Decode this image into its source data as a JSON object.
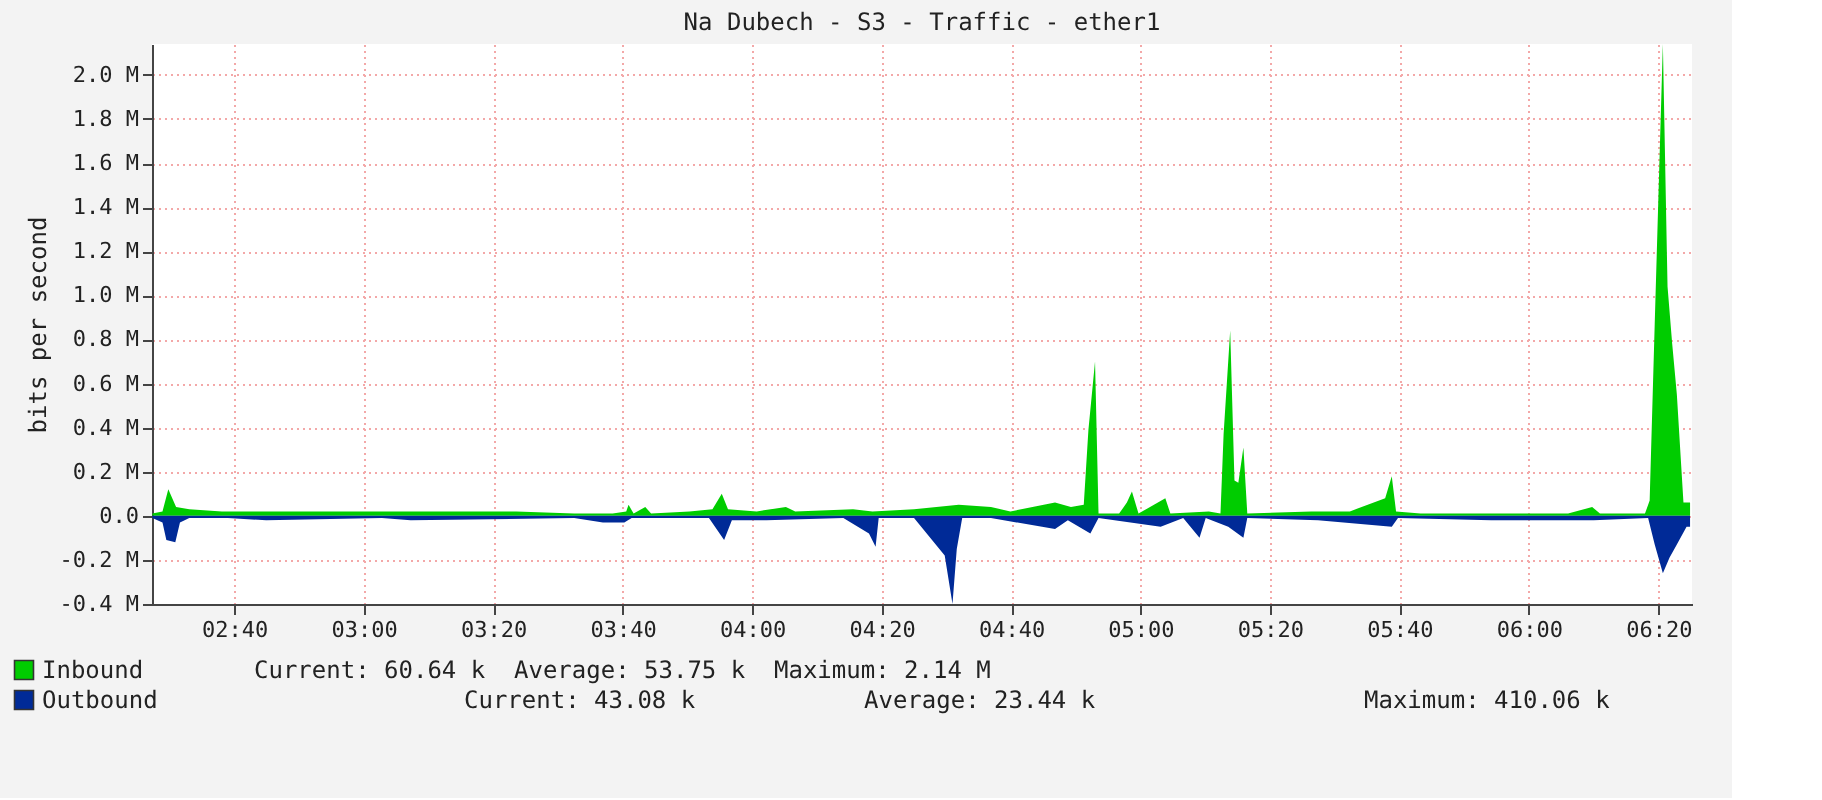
{
  "chart_data": {
    "type": "area",
    "title": "Na Dubech - S3 - Traffic - ether1",
    "ylabel": "bits per second",
    "xlim": [
      2.455,
      6.42
    ],
    "ylim": [
      -0.4,
      2.14
    ],
    "xticks": [
      {
        "value": 2.6667,
        "label": "02:40"
      },
      {
        "value": 3.0,
        "label": "03:00"
      },
      {
        "value": 3.3333,
        "label": "03:20"
      },
      {
        "value": 3.6667,
        "label": "03:40"
      },
      {
        "value": 4.0,
        "label": "04:00"
      },
      {
        "value": 4.3333,
        "label": "04:20"
      },
      {
        "value": 4.6667,
        "label": "04:40"
      },
      {
        "value": 5.0,
        "label": "05:00"
      },
      {
        "value": 5.3333,
        "label": "05:20"
      },
      {
        "value": 5.6667,
        "label": "05:40"
      },
      {
        "value": 6.0,
        "label": "06:00"
      },
      {
        "value": 6.3333,
        "label": "06:20"
      }
    ],
    "yticks": [
      {
        "value": -0.4,
        "label": "-0.4 M"
      },
      {
        "value": -0.2,
        "label": "-0.2 M"
      },
      {
        "value": 0,
        "label": "0.0"
      },
      {
        "value": 0.2,
        "label": "0.2 M"
      },
      {
        "value": 0.4,
        "label": "0.4 M"
      },
      {
        "value": 0.6,
        "label": "0.6 M"
      },
      {
        "value": 0.8,
        "label": "0.8 M"
      },
      {
        "value": 1.0,
        "label": "1.0 M"
      },
      {
        "value": 1.2,
        "label": "1.2 M"
      },
      {
        "value": 1.4,
        "label": "1.4 M"
      },
      {
        "value": 1.6,
        "label": "1.6 M"
      },
      {
        "value": 1.8,
        "label": "1.8 M"
      },
      {
        "value": 2.0,
        "label": "2.0 M"
      }
    ],
    "grid": true,
    "legend": "bottom",
    "series": [
      {
        "name": "Inbound",
        "color": "#00cc00",
        "x": [
          2.456,
          2.482,
          2.497,
          2.517,
          2.551,
          2.635,
          2.749,
          2.898,
          3.047,
          3.245,
          3.393,
          3.542,
          3.641,
          3.676,
          3.682,
          3.695,
          3.725,
          3.74,
          3.839,
          3.898,
          3.922,
          3.938,
          4.012,
          4.087,
          4.111,
          4.26,
          4.31,
          4.417,
          4.532,
          4.615,
          4.665,
          4.78,
          4.821,
          4.854,
          4.866,
          4.883,
          4.892,
          4.945,
          4.965,
          4.978,
          4.995,
          5.064,
          5.077,
          5.176,
          5.206,
          5.214,
          5.231,
          5.242,
          5.252,
          5.265,
          5.275,
          5.44,
          5.539,
          5.63,
          5.647,
          5.658,
          5.721,
          5.82,
          6.002,
          6.101,
          6.163,
          6.183,
          6.299,
          6.311,
          6.324,
          6.345,
          6.357,
          6.369,
          6.381,
          6.398,
          6.415
        ],
        "values": [
          0.01,
          0.02,
          0.12,
          0.04,
          0.03,
          0.02,
          0.02,
          0.02,
          0.02,
          0.02,
          0.02,
          0.01,
          0.01,
          0.02,
          0.05,
          0.01,
          0.04,
          0.01,
          0.02,
          0.03,
          0.1,
          0.03,
          0.02,
          0.04,
          0.02,
          0.03,
          0.02,
          0.03,
          0.05,
          0.04,
          0.02,
          0.06,
          0.04,
          0.05,
          0.39,
          0.7,
          0.01,
          0.01,
          0.06,
          0.11,
          0.01,
          0.08,
          0.01,
          0.02,
          0.01,
          0.37,
          0.84,
          0.16,
          0.15,
          0.31,
          0.01,
          0.02,
          0.02,
          0.08,
          0.18,
          0.02,
          0.01,
          0.01,
          0.01,
          0.01,
          0.04,
          0.01,
          0.01,
          0.07,
          0.87,
          2.14,
          1.04,
          0.78,
          0.55,
          0.06,
          0.06
        ]
      },
      {
        "name": "Outbound",
        "color": "#002a97",
        "x": [
          2.456,
          2.482,
          2.492,
          2.515,
          2.527,
          2.551,
          2.65,
          2.749,
          3.047,
          3.121,
          3.542,
          3.616,
          3.671,
          3.69,
          3.889,
          3.928,
          3.948,
          4.037,
          4.235,
          4.301,
          4.318,
          4.326,
          4.417,
          4.496,
          4.516,
          4.527,
          4.541,
          4.615,
          4.78,
          4.813,
          4.871,
          4.892,
          5.052,
          5.11,
          5.152,
          5.168,
          5.226,
          5.265,
          5.275,
          5.457,
          5.647,
          5.663,
          5.903,
          6.167,
          6.307,
          6.324,
          6.345,
          6.362,
          6.381,
          6.406,
          6.415
        ],
        "values": [
          -0.01,
          -0.03,
          -0.11,
          -0.12,
          -0.03,
          -0.01,
          -0.01,
          -0.02,
          -0.01,
          -0.02,
          -0.01,
          -0.03,
          -0.03,
          -0.01,
          -0.01,
          -0.11,
          -0.02,
          -0.02,
          -0.01,
          -0.08,
          -0.14,
          -0.01,
          -0.01,
          -0.18,
          -0.4,
          -0.15,
          -0.01,
          -0.01,
          -0.06,
          -0.02,
          -0.08,
          -0.01,
          -0.05,
          -0.01,
          -0.1,
          -0.01,
          -0.05,
          -0.1,
          -0.01,
          -0.02,
          -0.05,
          -0.01,
          -0.02,
          -0.02,
          -0.01,
          -0.13,
          -0.26,
          -0.19,
          -0.13,
          -0.05,
          -0.05
        ]
      }
    ],
    "annotations": [
      "Current:    60.64 k",
      "Average:    53.75 k",
      "Maximum:     2.14 M",
      "Current:    43.08 k",
      "Average:    23.44 k",
      "Maximum:  410.06 k"
    ]
  }
}
